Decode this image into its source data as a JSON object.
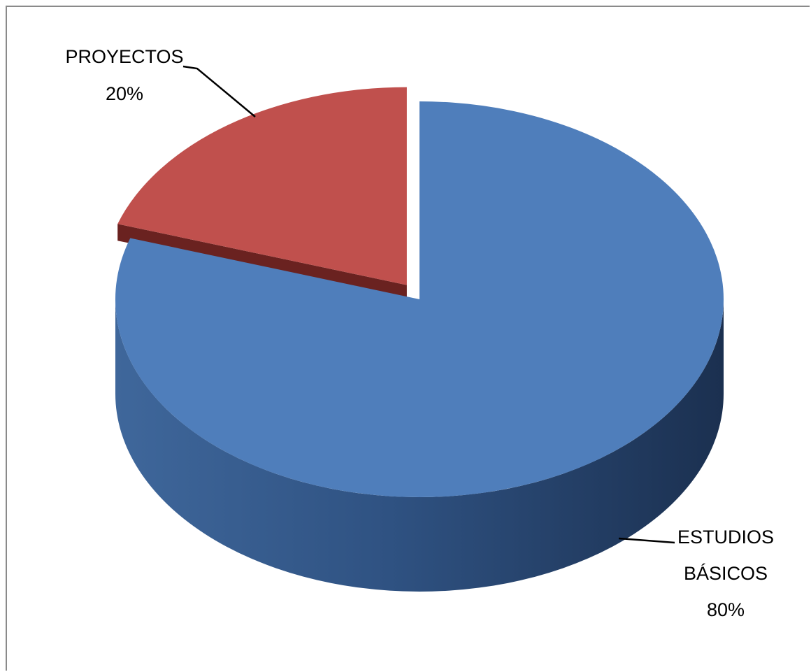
{
  "chart_data": {
    "type": "pie",
    "style": "3d-exploded",
    "title": "",
    "slices": [
      {
        "label": "ESTUDIOS BÁSICOS",
        "label_line1": "ESTUDIOS",
        "label_line2": "BÁSICOS",
        "value": 80,
        "value_label": "80%",
        "color": "#4F7EBB",
        "side_color": "#2E4E76",
        "exploded": false
      },
      {
        "label": "PROYECTOS",
        "value": 20,
        "value_label": "20%",
        "color": "#C0504D",
        "side_color": "#6A2220",
        "exploded": true
      }
    ],
    "legend": "none"
  }
}
